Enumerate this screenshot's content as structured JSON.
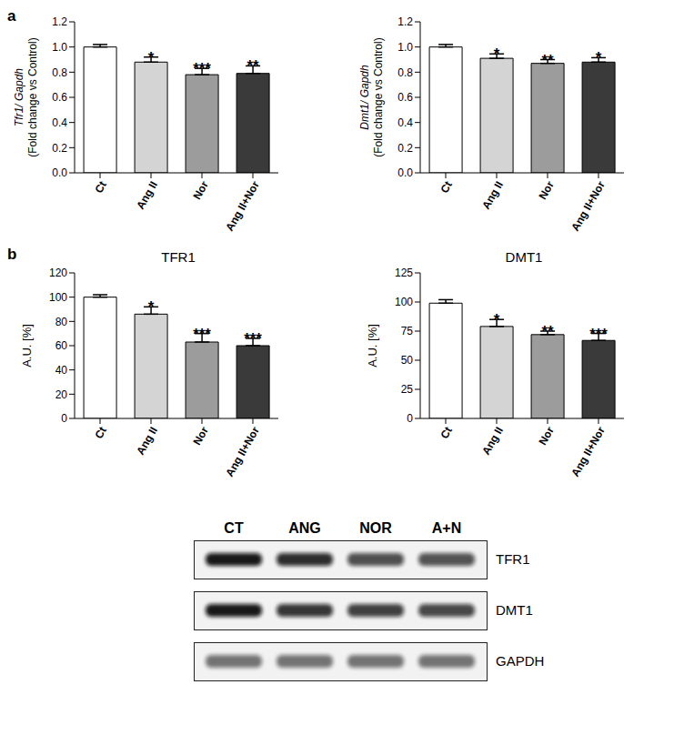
{
  "chart_data": [
    {
      "panel": "a",
      "type": "bar",
      "y_label": "Tfr1/ Gapdh",
      "y_sublabel": "(Fold change vs Control)",
      "categories": [
        "Ct",
        "Ang II",
        "Nor",
        "Ang II+Nor"
      ],
      "values": [
        1.0,
        0.88,
        0.78,
        0.79
      ],
      "errors": [
        0.02,
        0.04,
        0.05,
        0.06
      ],
      "colors": [
        "#ffffff",
        "#d4d4d4",
        "#9c9c9c",
        "#3a3a3a"
      ],
      "ylim": [
        0,
        1.2
      ],
      "yticks": [
        {
          "value": 0,
          "label": "0.0"
        },
        0.2,
        0.4,
        0.6,
        0.8,
        {
          "value": 1,
          "label": "1.0"
        },
        1.2
      ],
      "annotations": [
        {
          "category": "Ang II",
          "text": "*"
        },
        {
          "category": "Nor",
          "text": "***"
        },
        {
          "category": "Ang II+Nor",
          "text": "**"
        }
      ]
    },
    {
      "panel": "a",
      "type": "bar",
      "y_label": "Dmt1/ Gapdh",
      "y_sublabel": "(Fold change vs Control)",
      "categories": [
        "Ct",
        "Ang II",
        "Nor",
        "Ang II+Nor"
      ],
      "values": [
        1.0,
        0.91,
        0.87,
        0.88
      ],
      "errors": [
        0.02,
        0.035,
        0.03,
        0.035
      ],
      "colors": [
        "#ffffff",
        "#d4d4d4",
        "#9c9c9c",
        "#3a3a3a"
      ],
      "ylim": [
        0,
        1.2
      ],
      "yticks": [
        {
          "value": 0,
          "label": "0.0"
        },
        0.2,
        0.4,
        0.6,
        0.8,
        {
          "value": 1,
          "label": "1.0"
        },
        1.2
      ],
      "annotations": [
        {
          "category": "Ang II",
          "text": "*"
        },
        {
          "category": "Nor",
          "text": "**"
        },
        {
          "category": "Ang II+Nor",
          "text": "*"
        }
      ]
    },
    {
      "panel": "b",
      "type": "bar",
      "title": "TFR1",
      "y_label": "A.U. [%]",
      "categories": [
        "Ct",
        "Ang II",
        "Nor",
        "Ang II+Nor"
      ],
      "values": [
        100,
        86,
        63,
        60
      ],
      "errors": [
        2,
        6,
        7,
        6
      ],
      "colors": [
        "#ffffff",
        "#d4d4d4",
        "#9c9c9c",
        "#3a3a3a"
      ],
      "ylim": [
        0,
        120
      ],
      "yticks": [
        0,
        20,
        40,
        60,
        80,
        100,
        120
      ],
      "annotations": [
        {
          "category": "Ang II",
          "text": "*"
        },
        {
          "category": "Nor",
          "text": "***"
        },
        {
          "category": "Ang II+Nor",
          "text": "***"
        }
      ]
    },
    {
      "panel": "b",
      "type": "bar",
      "title": "DMT1",
      "y_label": "A.U. [%]",
      "categories": [
        "Ct",
        "Ang II",
        "Nor",
        "Ang II+Nor"
      ],
      "values": [
        99,
        79,
        72,
        67
      ],
      "errors": [
        3,
        6,
        3,
        6
      ],
      "colors": [
        "#ffffff",
        "#d4d4d4",
        "#9c9c9c",
        "#3a3a3a"
      ],
      "ylim": [
        0,
        125
      ],
      "yticks": [
        0,
        25,
        50,
        75,
        100,
        125
      ],
      "annotations": [
        {
          "category": "Ang II",
          "text": "*"
        },
        {
          "category": "Nor",
          "text": "**"
        },
        {
          "category": "Ang II+Nor",
          "text": "***"
        }
      ]
    }
  ],
  "blot": {
    "columns": [
      "CT",
      "ANG",
      "NOR",
      "A+N"
    ],
    "rows": [
      "TFR1",
      "DMT1",
      "GAPDH"
    ]
  }
}
